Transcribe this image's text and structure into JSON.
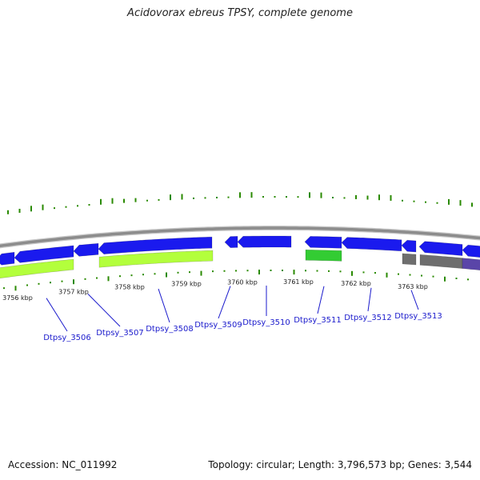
{
  "title": "Acidovorax ebreus TPSY, complete genome",
  "footer": {
    "accession": "Accession: NC_011992",
    "summary": "Topology: circular; Length: 3,796,573 bp; Genes: 3,544"
  },
  "colors": {
    "background": "#ffffff",
    "backbone": "#8c8c8c",
    "gene_forward": "#1a1aee",
    "gene_reverse": "#1a1aee",
    "cds_light_green": "#b3ff3c",
    "cds_green": "#33cc33",
    "cds_grey": "#6e6e6e",
    "cds_purple": "#5a45a8",
    "gc_skew": "#2a8a00",
    "label": "#1a1acc"
  },
  "scale_labels": [
    {
      "text": "3756 kbp",
      "kbp": 3756
    },
    {
      "text": "3757 kbp",
      "kbp": 3757
    },
    {
      "text": "3758 kbp",
      "kbp": 3758
    },
    {
      "text": "3759 kbp",
      "kbp": 3759
    },
    {
      "text": "3760 kbp",
      "kbp": 3760
    },
    {
      "text": "3761 kbp",
      "kbp": 3761
    },
    {
      "text": "3762 kbp",
      "kbp": 3762
    },
    {
      "text": "3763 kbp",
      "kbp": 3763
    }
  ],
  "genes": [
    {
      "label": "Dtpsy_3506"
    },
    {
      "label": "Dtpsy_3507"
    },
    {
      "label": "Dtpsy_3508"
    },
    {
      "label": "Dtpsy_3509"
    },
    {
      "label": "Dtpsy_3510"
    },
    {
      "label": "Dtpsy_3511"
    },
    {
      "label": "Dtpsy_3512"
    },
    {
      "label": "Dtpsy_3513"
    }
  ]
}
